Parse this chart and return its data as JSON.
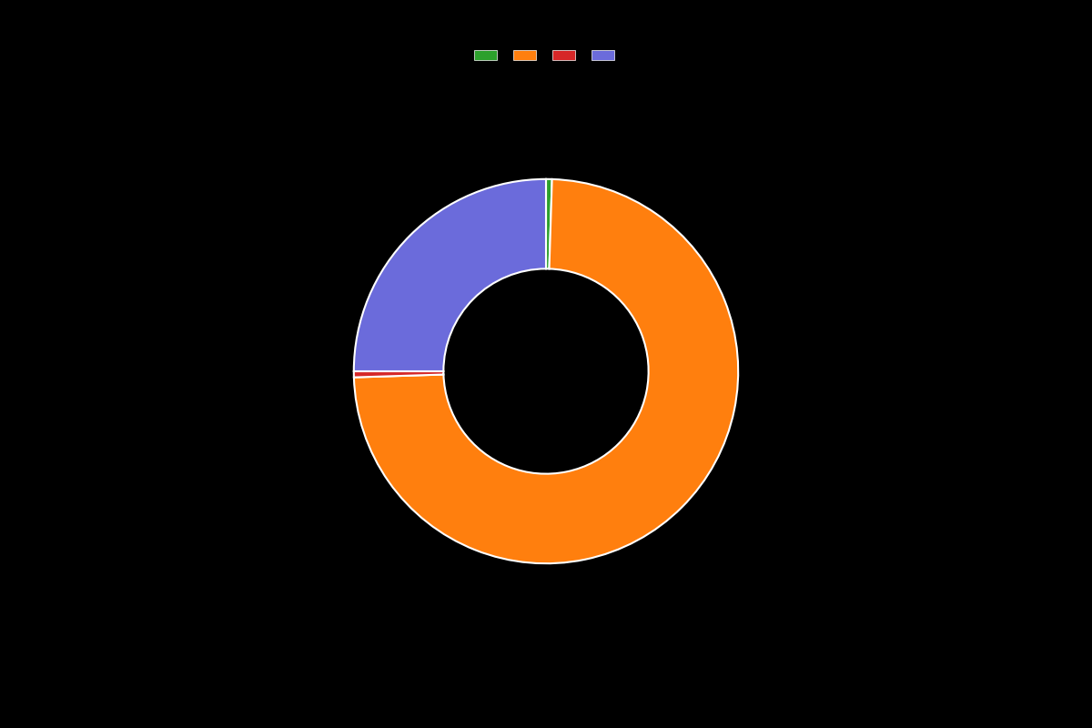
{
  "slices": [
    0.5,
    74.0,
    0.5,
    25.0
  ],
  "colors": [
    "#2ca02c",
    "#ff7f0e",
    "#d62728",
    "#6b6bdb"
  ],
  "legend_labels": [
    "",
    "",
    "",
    ""
  ],
  "background_color": "#000000",
  "wedge_edge_color": "#ffffff",
  "wedge_linewidth": 1.5,
  "donut_width": 0.35,
  "figsize": [
    12.0,
    8.0
  ],
  "dpi": 100
}
